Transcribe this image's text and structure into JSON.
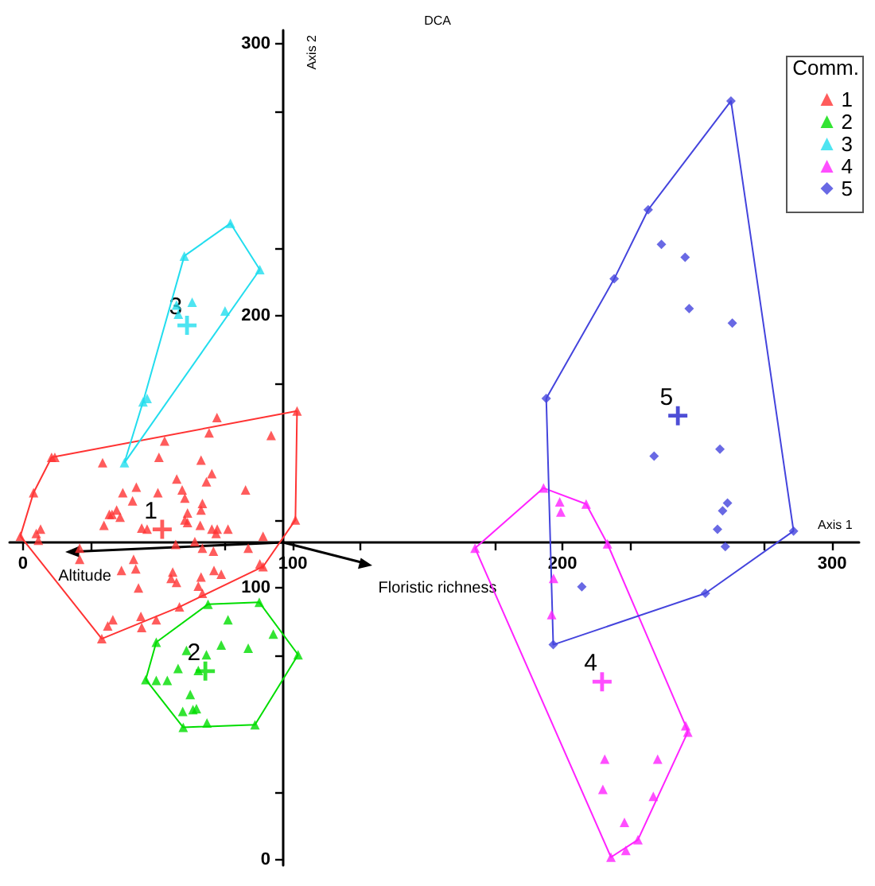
{
  "chart_data": {
    "type": "scatter",
    "title": "DCA",
    "xlabel": "Axis 1",
    "ylabel": "Axis 2",
    "legend_title": "Comm.",
    "legend": "top right",
    "grid": false,
    "xlim": [
      -5,
      310
    ],
    "ylim": [
      -2,
      305
    ],
    "xticks": [
      0,
      100,
      200,
      300
    ],
    "yticks": [
      0,
      100,
      200,
      300
    ],
    "annotations": [
      {
        "text": "Altitude",
        "x": 17,
        "y": 113
      },
      "Floristic richness",
      {
        "text": "1",
        "x": 51.6,
        "y": 121.5
      },
      {
        "text": "2",
        "x": 67.6,
        "y": 69.4
      },
      {
        "text": "3",
        "x": 60.8,
        "y": 196.5
      },
      {
        "text": "4",
        "x": 214.7,
        "y": 65.5
      },
      {
        "text": "5",
        "x": 242.8,
        "y": 163.3
      }
    ],
    "series": [
      {
        "name": "1",
        "color": "#ff3333",
        "marker": "triangle",
        "x": [
          10.6,
          11.8,
          3.9,
          -1,
          71.9,
          101.6,
          92,
          69,
          52.5,
          29.5,
          50.4,
          66,
          57,
          70,
          68,
          82.5,
          50,
          59,
          42,
          37,
          40.6,
          66.5,
          60,
          34.7,
          32,
          33,
          36,
          30,
          61,
          66,
          60,
          61,
          65.7,
          44,
          46,
          70,
          72,
          76,
          71.6,
          6.5,
          4.9,
          5.7,
          89,
          101,
          21,
          56.6,
          63.7,
          66.5,
          70.6,
          83.5,
          41,
          21,
          87.8,
          89,
          36.5,
          41.8,
          55.5,
          70.8,
          73.5,
          54.9,
          56.9,
          66,
          65,
          42.8,
          58,
          43.7,
          33.3,
          31.4,
          44,
          49.4,
          29.2,
          66.5
        ],
        "values": [
          148,
          148,
          135,
          119,
          162.6,
          165,
          156,
          157,
          154,
          146,
          148,
          147,
          140,
          142,
          139,
          136,
          135,
          136,
          137,
          135,
          132,
          131,
          133,
          128.6,
          127,
          127,
          126,
          123,
          127.5,
          128.6,
          125,
          124,
          123,
          122,
          121.6,
          121.6,
          121.6,
          121.6,
          120,
          121.6,
          120,
          117.5,
          119,
          125,
          114.6,
          116,
          117,
          114.6,
          113.5,
          114.6,
          110.5,
          110.5,
          108.8,
          107.8,
          106.4,
          107,
          105.8,
          106.4,
          105,
          103.5,
          102,
          104,
          100.6,
          100,
          93,
          89.5,
          88.3,
          86,
          85.4,
          88.3,
          81.3,
          98
        ]
      },
      {
        "name": "2",
        "color": "#00dd00",
        "marker": "triangle",
        "x": [
          68.6,
          87.6,
          76,
          92.8,
          49.4,
          68,
          73.5,
          83.5,
          60.6,
          102,
          57.5,
          65,
          45.5,
          49.4,
          53.5,
          62,
          64.3,
          63,
          59.2,
          59.4,
          68.2,
          86
        ],
        "values": [
          94,
          94.7,
          88.3,
          83,
          80,
          75.4,
          79,
          77.8,
          77,
          75.4,
          70.4,
          69.6,
          66.3,
          66,
          66,
          60.8,
          55.6,
          55.2,
          54.6,
          48.7,
          50.3,
          49.7
        ]
      },
      {
        "name": "3",
        "color": "#22ddee",
        "marker": "triangle",
        "x": [
          76.9,
          59.8,
          87.8,
          62.7,
          56.9,
          57.6,
          74.9,
          46,
          44.5,
          37.6
        ],
        "values": [
          234,
          222,
          217,
          205,
          204,
          200.6,
          201.8,
          169.6,
          168.4,
          146
        ]
      },
      {
        "name": "4",
        "color": "#ff22ff",
        "marker": "triangle",
        "x": [
          193,
          199,
          199.4,
          208.8,
          216.7,
          196.7,
          196,
          245.7,
          246.5,
          215.7,
          235.3,
          215,
          233.7,
          223,
          228,
          223.5,
          218,
          167.6
        ],
        "values": [
          136.7,
          131.6,
          127.9,
          130.8,
          116.2,
          103.5,
          90.2,
          49.3,
          47,
          37,
          37,
          25.9,
          23.4,
          13.8,
          7.4,
          3.5,
          1,
          114.6
        ]
      },
      {
        "name": "5",
        "color": "#4444dd",
        "marker": "diamond",
        "x": [
          262.5,
          231.8,
          236.7,
          245.5,
          219.2,
          247,
          263,
          194,
          234,
          258.4,
          261.2,
          259.4,
          257.5,
          285.7,
          260.4,
          207.2,
          253,
          196.6
        ],
        "values": [
          279,
          239,
          226.3,
          221.5,
          213.6,
          202.7,
          197.3,
          169.6,
          148.4,
          151,
          131.2,
          128.3,
          121.5,
          120.9,
          115.2,
          100.4,
          98,
          79.1
        ]
      },
      {
        "type": "scatter",
        "marker": "cross",
        "colors": [
          "#ff3333",
          "#00dd00",
          "#22ddee",
          "#ff22ff",
          "#2222cc"
        ],
        "x": [
          51.6,
          67.6,
          60.8,
          214.7,
          242.8
        ],
        "values": [
          121.5,
          69.4,
          196.5,
          65.5,
          163.3
        ]
      },
      {
        "type": "line",
        "marker": "none",
        "color": "#ff3333",
        "x": [
          -1,
          3.9,
          10.6,
          101.6
        ],
        "values": [
          119,
          135,
          148,
          165
        ]
      },
      {
        "type": "line",
        "marker": "none",
        "color": "#ff3333",
        "x": [
          -1,
          29.2,
          58,
          89,
          101,
          101.6
        ],
        "values": [
          119,
          81.3,
          93,
          107.8,
          125,
          165
        ]
      },
      {
        "type": "line",
        "marker": "none",
        "color": "#00dd00",
        "x": [
          45.5,
          49.4,
          68.6,
          87.6,
          102
        ],
        "values": [
          66.3,
          80,
          94,
          94.7,
          75.4
        ]
      },
      {
        "type": "line",
        "marker": "none",
        "color": "#00dd00",
        "x": [
          45.5,
          59.4,
          86,
          102
        ],
        "values": [
          66.3,
          48.7,
          49.7,
          75.4
        ]
      },
      {
        "type": "line",
        "marker": "none",
        "color": "#22ddee",
        "x": [
          37.6,
          44.5,
          59.8,
          76.9,
          87.8
        ],
        "values": [
          146,
          168.4,
          222,
          234,
          217
        ]
      },
      {
        "type": "line",
        "marker": "none",
        "color": "#22ddee",
        "x": [
          37.6,
          87.8
        ],
        "values": [
          146,
          217
        ]
      },
      {
        "type": "line",
        "marker": "none",
        "color": "#ff22ff",
        "x": [
          167.6,
          193,
          208.8,
          216.7,
          245.7,
          246.5
        ],
        "values": [
          114.6,
          136.7,
          130.8,
          116.2,
          49.3,
          47
        ]
      },
      {
        "type": "line",
        "marker": "none",
        "color": "#ff22ff",
        "x": [
          167.6,
          218,
          228,
          246.5
        ],
        "values": [
          114.6,
          1,
          7.4,
          47
        ]
      },
      {
        "type": "line",
        "marker": "none",
        "color": "#4444dd",
        "x": [
          194,
          219.2,
          231.8,
          262.5,
          285.7
        ],
        "values": [
          169.6,
          213.6,
          239,
          279,
          120.9
        ]
      },
      {
        "type": "line",
        "marker": "none",
        "color": "#4444dd",
        "x": [
          194,
          196.6,
          253,
          285.7
        ],
        "values": [
          169.6,
          79.1,
          98,
          120.9
        ]
      }
    ]
  }
}
